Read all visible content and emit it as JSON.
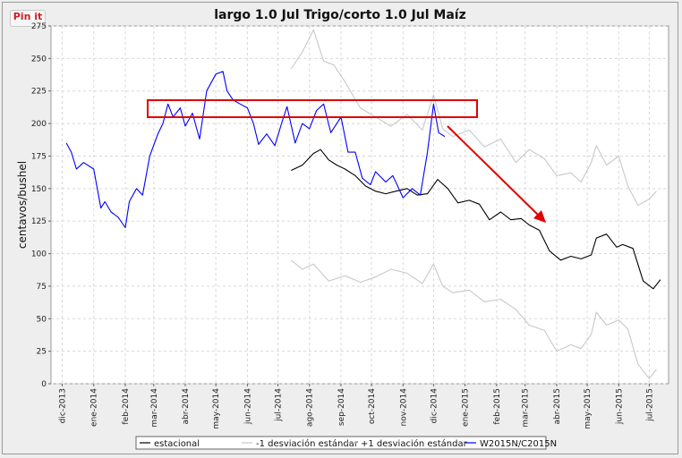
{
  "pin_label": "Pin it",
  "chart_data": {
    "type": "line",
    "title": "largo 1.0 Jul Trigo/corto 1.0 Jul Maíz",
    "ylabel": "centavos/bushel",
    "xlabel": "",
    "ylim": [
      0,
      275
    ],
    "yticks": [
      0,
      25,
      50,
      75,
      100,
      125,
      150,
      175,
      200,
      225,
      250,
      275
    ],
    "xlim": [
      "2013-11-20",
      "2015-07-20"
    ],
    "x_ticks": [
      {
        "date": "2013-12-01",
        "label": "dic-2013"
      },
      {
        "date": "2014-01-01",
        "label": "ene-2014"
      },
      {
        "date": "2014-02-01",
        "label": "feb-2014"
      },
      {
        "date": "2014-03-01",
        "label": "mar-2014"
      },
      {
        "date": "2014-04-01",
        "label": "abr-2014"
      },
      {
        "date": "2014-05-01",
        "label": "may-2014"
      },
      {
        "date": "2014-06-01",
        "label": "jun-2014"
      },
      {
        "date": "2014-07-01",
        "label": "jul-2014"
      },
      {
        "date": "2014-08-01",
        "label": "ago-2014"
      },
      {
        "date": "2014-09-01",
        "label": "sep-2014"
      },
      {
        "date": "2014-10-01",
        "label": "oct-2014"
      },
      {
        "date": "2014-11-01",
        "label": "nov-2014"
      },
      {
        "date": "2014-12-01",
        "label": "dic-2014"
      },
      {
        "date": "2015-01-01",
        "label": "ene-2015"
      },
      {
        "date": "2015-02-01",
        "label": "feb-2015"
      },
      {
        "date": "2015-03-01",
        "label": "mar-2015"
      },
      {
        "date": "2015-04-01",
        "label": "abr-2015"
      },
      {
        "date": "2015-05-01",
        "label": "may-2015"
      },
      {
        "date": "2015-06-01",
        "label": "jun-2015"
      },
      {
        "date": "2015-07-01",
        "label": "jul-2015"
      }
    ],
    "grid": true,
    "legend_position": "bottom",
    "series": [
      {
        "name": "estacional",
        "color": "#000000",
        "x": [
          "2014-07-14",
          "2014-07-25",
          "2014-08-05",
          "2014-08-12",
          "2014-08-20",
          "2014-08-28",
          "2014-09-05",
          "2014-09-15",
          "2014-09-25",
          "2014-10-05",
          "2014-10-15",
          "2014-10-25",
          "2014-11-05",
          "2014-11-15",
          "2014-11-25",
          "2014-12-05",
          "2014-12-15",
          "2014-12-25",
          "2015-01-05",
          "2015-01-15",
          "2015-01-25",
          "2015-02-05",
          "2015-02-15",
          "2015-02-25",
          "2015-03-05",
          "2015-03-15",
          "2015-03-25",
          "2015-04-05",
          "2015-04-15",
          "2015-04-25",
          "2015-05-05",
          "2015-05-10",
          "2015-05-20",
          "2015-05-30",
          "2015-06-05",
          "2015-06-15",
          "2015-06-25",
          "2015-07-05",
          "2015-07-12"
        ],
        "y": [
          164,
          168,
          177,
          180,
          172,
          168,
          165,
          160,
          152,
          148,
          146,
          148,
          150,
          145,
          146,
          157,
          150,
          139,
          141,
          138,
          126,
          132,
          126,
          127,
          122,
          118,
          102,
          95,
          98,
          96,
          99,
          112,
          115,
          105,
          107,
          104,
          79,
          73,
          80
        ]
      },
      {
        "name": "-1 desviación estándar",
        "color": "#c8c8c8",
        "x": [
          "2014-07-14",
          "2014-07-25",
          "2014-08-05",
          "2014-08-20",
          "2014-09-05",
          "2014-09-20",
          "2014-10-05",
          "2014-10-20",
          "2014-11-05",
          "2014-11-20",
          "2014-12-01",
          "2014-12-10",
          "2014-12-20",
          "2015-01-05",
          "2015-01-20",
          "2015-02-05",
          "2015-02-20",
          "2015-03-05",
          "2015-03-20",
          "2015-04-01",
          "2015-04-15",
          "2015-04-25",
          "2015-05-05",
          "2015-05-10",
          "2015-05-20",
          "2015-06-01",
          "2015-06-10",
          "2015-06-20",
          "2015-07-01",
          "2015-07-08"
        ],
        "y": [
          95,
          88,
          92,
          79,
          83,
          78,
          82,
          88,
          85,
          77,
          92,
          75,
          70,
          72,
          63,
          65,
          57,
          45,
          41,
          25,
          30,
          27,
          38,
          55,
          45,
          49,
          42,
          15,
          4,
          11
        ]
      },
      {
        "name": "+1 desviación estándar",
        "color": "#c8c8c8",
        "x": [
          "2014-07-14",
          "2014-07-25",
          "2014-08-05",
          "2014-08-15",
          "2014-08-25",
          "2014-09-05",
          "2014-09-20",
          "2014-10-05",
          "2014-10-20",
          "2014-11-05",
          "2014-11-20",
          "2014-12-01",
          "2014-12-10",
          "2014-12-20",
          "2015-01-05",
          "2015-01-20",
          "2015-02-05",
          "2015-02-20",
          "2015-03-05",
          "2015-03-20",
          "2015-04-01",
          "2015-04-15",
          "2015-04-25",
          "2015-05-05",
          "2015-05-10",
          "2015-05-20",
          "2015-06-01",
          "2015-06-10",
          "2015-06-20",
          "2015-07-01",
          "2015-07-08"
        ],
        "y": [
          242,
          255,
          272,
          248,
          245,
          232,
          212,
          205,
          198,
          207,
          195,
          222,
          196,
          190,
          195,
          182,
          188,
          170,
          180,
          173,
          160,
          162,
          155,
          170,
          183,
          168,
          175,
          152,
          137,
          142,
          148
        ]
      },
      {
        "name": "W2015N/C2015N",
        "color": "#0000ff",
        "x": [
          "2013-12-05",
          "2013-12-10",
          "2013-12-15",
          "2013-12-22",
          "2014-01-01",
          "2014-01-08",
          "2014-01-12",
          "2014-01-18",
          "2014-01-25",
          "2014-02-01",
          "2014-02-05",
          "2014-02-12",
          "2014-02-18",
          "2014-02-25",
          "2014-03-05",
          "2014-03-10",
          "2014-03-15",
          "2014-03-20",
          "2014-03-27",
          "2014-04-01",
          "2014-04-08",
          "2014-04-15",
          "2014-04-22",
          "2014-05-01",
          "2014-05-08",
          "2014-05-12",
          "2014-05-18",
          "2014-05-25",
          "2014-06-01",
          "2014-06-07",
          "2014-06-12",
          "2014-06-20",
          "2014-06-28",
          "2014-07-05",
          "2014-07-10",
          "2014-07-18",
          "2014-07-25",
          "2014-08-01",
          "2014-08-08",
          "2014-08-15",
          "2014-08-22",
          "2014-09-01",
          "2014-09-08",
          "2014-09-15",
          "2014-09-22",
          "2014-09-30",
          "2014-10-05",
          "2014-10-15",
          "2014-10-22",
          "2014-11-01",
          "2014-11-10",
          "2014-11-18",
          "2014-11-25",
          "2014-12-01",
          "2014-12-06",
          "2014-12-12"
        ],
        "y": [
          185,
          178,
          165,
          170,
          165,
          135,
          140,
          132,
          128,
          120,
          140,
          150,
          145,
          175,
          192,
          200,
          215,
          205,
          212,
          198,
          208,
          188,
          225,
          238,
          240,
          225,
          218,
          215,
          212,
          200,
          184,
          192,
          183,
          201,
          213,
          185,
          200,
          196,
          210,
          215,
          193,
          205,
          178,
          178,
          158,
          153,
          163,
          155,
          160,
          143,
          150,
          145,
          178,
          215,
          193,
          190
        ]
      }
    ]
  }
}
